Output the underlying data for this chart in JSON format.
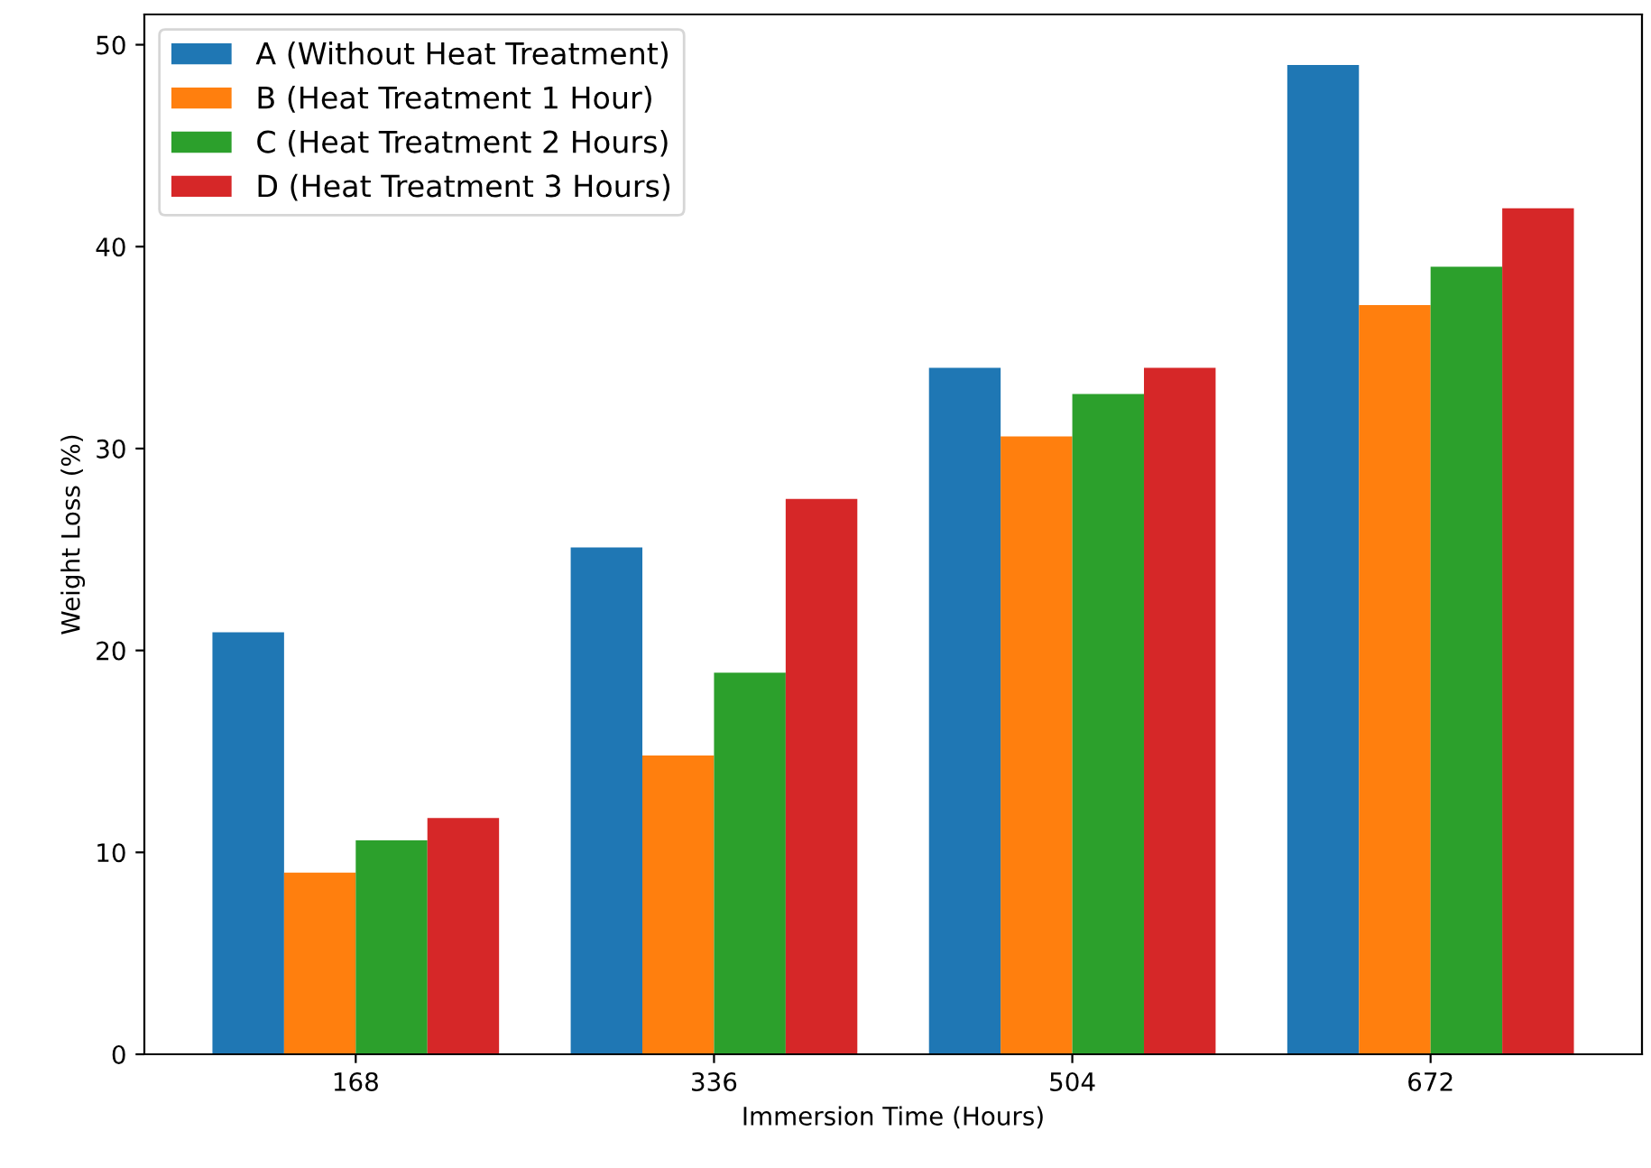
{
  "chart_data": {
    "type": "bar",
    "xlabel": "Immersion Time (Hours)",
    "ylabel": "Weight Loss (%)",
    "categories": [
      "168",
      "336",
      "504",
      "672"
    ],
    "series": [
      {
        "name": "A (Without Heat Treatment)",
        "color": "#1f77b4",
        "values": [
          20.9,
          25.1,
          34.0,
          49.0
        ]
      },
      {
        "name": "B (Heat Treatment 1 Hour)",
        "color": "#ff7f0e",
        "values": [
          9.0,
          14.8,
          30.6,
          37.1
        ]
      },
      {
        "name": "C (Heat Treatment 2 Hours)",
        "color": "#2ca02c",
        "values": [
          10.6,
          18.9,
          32.7,
          39.0
        ]
      },
      {
        "name": "D (Heat Treatment 3 Hours)",
        "color": "#d62728",
        "values": [
          11.7,
          27.5,
          34.0,
          41.9
        ]
      }
    ],
    "ylim": [
      0,
      51.5
    ],
    "yticks": [
      0,
      10,
      20,
      30,
      40,
      50
    ],
    "grid": false,
    "legend": "top left"
  }
}
